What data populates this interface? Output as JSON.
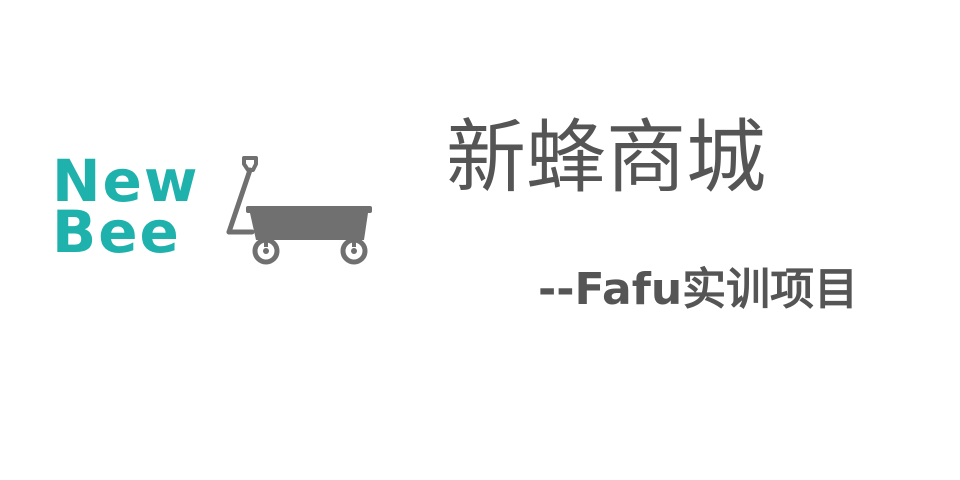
{
  "logo": {
    "line1": "New",
    "line2": "Bee",
    "icon": "wagon-cart-icon",
    "text_color": "#1fb2ad",
    "icon_color": "#707070"
  },
  "title": "新蜂商城",
  "subtitle": "--Fafu实训项目",
  "colors": {
    "background": "#ffffff",
    "heading": "#555555"
  }
}
